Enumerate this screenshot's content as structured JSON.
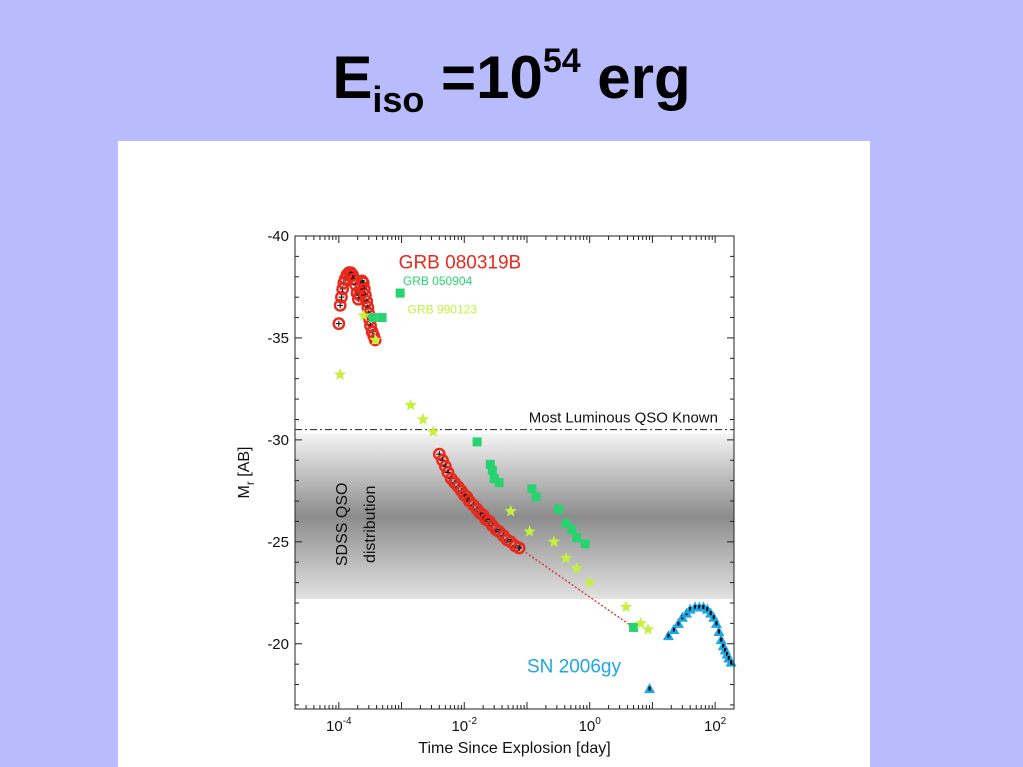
{
  "slide": {
    "title_main": "E",
    "title_sub": "iso",
    "title_mid": " =10",
    "title_sup": "54",
    "title_end": " erg"
  },
  "chart_data": {
    "type": "scatter",
    "title": "",
    "xlabel": "Time Since Explosion [day]",
    "ylabel_main": "M",
    "ylabel_sub": "r",
    "ylabel_unit": " [AB]",
    "x_scale": "log",
    "xlim": [
      2e-05,
      200
    ],
    "ylim": [
      -16.8,
      -40
    ],
    "y_inverted": true,
    "x_ticks": [
      {
        "value": 0.0001,
        "base": "10",
        "exp": "-4"
      },
      {
        "value": 0.01,
        "base": "10",
        "exp": "-2"
      },
      {
        "value": 1,
        "base": "10",
        "exp": "0"
      },
      {
        "value": 100,
        "base": "10",
        "exp": "2"
      }
    ],
    "y_ticks": [
      {
        "value": -40,
        "label": "-40"
      },
      {
        "value": -35,
        "label": "-35"
      },
      {
        "value": -30,
        "label": "-30"
      },
      {
        "value": -25,
        "label": "-25"
      },
      {
        "value": -20,
        "label": "-20"
      }
    ],
    "reference_line": {
      "y": -30.5,
      "label": "Most Luminous QSO Known"
    },
    "band": {
      "y_min": -22.2,
      "y_max": -30.3,
      "label_line1": "SDSS QSO",
      "label_line2": "distribution"
    },
    "series": [
      {
        "name": "GRB 080319B",
        "color": "#e8291c",
        "marker": "circle",
        "points": [
          [
            0.0001,
            -35.7
          ],
          [
            0.000105,
            -36.6
          ],
          [
            0.00011,
            -37.0
          ],
          [
            0.000115,
            -37.4
          ],
          [
            0.00012,
            -37.7
          ],
          [
            0.000127,
            -37.9
          ],
          [
            0.000135,
            -38.1
          ],
          [
            0.000145,
            -38.2
          ],
          [
            0.000155,
            -38.2
          ],
          [
            0.000165,
            -38.1
          ],
          [
            0.000175,
            -37.9
          ],
          [
            0.000185,
            -37.6
          ],
          [
            0.000195,
            -37.2
          ],
          [
            0.000205,
            -36.9
          ],
          [
            0.000215,
            -37.1
          ],
          [
            0.000225,
            -37.5
          ],
          [
            0.000235,
            -37.8
          ],
          [
            0.000245,
            -37.7
          ],
          [
            0.000255,
            -37.4
          ],
          [
            0.000265,
            -37.1
          ],
          [
            0.000278,
            -36.8
          ],
          [
            0.00029,
            -36.5
          ],
          [
            0.0003,
            -36.2
          ],
          [
            0.00031,
            -35.9
          ],
          [
            0.00032,
            -35.6
          ],
          [
            0.00034,
            -35.3
          ],
          [
            0.00036,
            -35.1
          ],
          [
            0.00038,
            -34.9
          ],
          [
            0.004,
            -29.3
          ],
          [
            0.0045,
            -29.0
          ],
          [
            0.005,
            -28.7
          ],
          [
            0.0055,
            -28.4
          ],
          [
            0.0062,
            -28.1
          ],
          [
            0.007,
            -27.9
          ],
          [
            0.008,
            -27.7
          ],
          [
            0.009,
            -27.5
          ],
          [
            0.01,
            -27.3
          ],
          [
            0.011,
            -27.2
          ],
          [
            0.012,
            -27.0
          ],
          [
            0.014,
            -26.8
          ],
          [
            0.016,
            -26.6
          ],
          [
            0.018,
            -26.4
          ],
          [
            0.02,
            -26.3
          ],
          [
            0.022,
            -26.1
          ],
          [
            0.025,
            -26.0
          ],
          [
            0.028,
            -25.8
          ],
          [
            0.032,
            -25.6
          ],
          [
            0.036,
            -25.5
          ],
          [
            0.042,
            -25.3
          ],
          [
            0.048,
            -25.1
          ],
          [
            0.055,
            -25.0
          ],
          [
            0.065,
            -24.8
          ],
          [
            0.075,
            -24.7
          ]
        ]
      },
      {
        "name": "GRB 050904",
        "color": "#27d36f",
        "marker": "square",
        "points": [
          [
            0.00035,
            -36.0
          ],
          [
            0.00049,
            -36.0
          ],
          [
            0.00095,
            -37.2
          ],
          [
            0.016,
            -29.9
          ],
          [
            0.026,
            -28.8
          ],
          [
            0.028,
            -28.5
          ],
          [
            0.03,
            -28.1
          ],
          [
            0.036,
            -27.9
          ],
          [
            0.12,
            -27.6
          ],
          [
            0.14,
            -27.2
          ],
          [
            0.32,
            -26.6
          ],
          [
            0.42,
            -25.9
          ],
          [
            0.52,
            -25.6
          ],
          [
            0.62,
            -25.2
          ],
          [
            0.85,
            -24.9
          ],
          [
            5.0,
            -20.8
          ]
        ]
      },
      {
        "name": "GRB 990123",
        "color": "#c4f13c",
        "marker": "star",
        "points": [
          [
            0.000105,
            -33.2
          ],
          [
            0.00025,
            -36.1
          ],
          [
            0.00038,
            -34.9
          ],
          [
            0.0014,
            -31.7
          ],
          [
            0.0022,
            -31.0
          ],
          [
            0.0032,
            -30.4
          ],
          [
            0.055,
            -26.5
          ],
          [
            0.11,
            -25.5
          ],
          [
            0.27,
            -25.0
          ],
          [
            0.42,
            -24.2
          ],
          [
            0.62,
            -23.7
          ],
          [
            1.0,
            -23.0
          ],
          [
            3.8,
            -21.8
          ],
          [
            6.5,
            -21.0
          ],
          [
            8.5,
            -20.7
          ]
        ]
      },
      {
        "name": "SN 2006gy",
        "color": "#1fa6e3",
        "marker": "triangle",
        "points": [
          [
            9.0,
            -17.8
          ],
          [
            18,
            -20.4
          ],
          [
            22,
            -20.7
          ],
          [
            26,
            -21.0
          ],
          [
            30,
            -21.3
          ],
          [
            35,
            -21.5
          ],
          [
            40,
            -21.7
          ],
          [
            48,
            -21.8
          ],
          [
            56,
            -21.8
          ],
          [
            65,
            -21.8
          ],
          [
            75,
            -21.7
          ],
          [
            85,
            -21.5
          ],
          [
            95,
            -21.3
          ],
          [
            105,
            -21.0
          ],
          [
            115,
            -20.6
          ],
          [
            125,
            -20.2
          ],
          [
            135,
            -19.9
          ],
          [
            145,
            -19.7
          ],
          [
            155,
            -19.5
          ],
          [
            165,
            -19.3
          ],
          [
            180,
            -19.1
          ]
        ]
      }
    ],
    "connector": {
      "from": [
        0.075,
        -24.7
      ],
      "to": [
        5.0,
        -20.8
      ],
      "color": "#e8291c"
    }
  }
}
